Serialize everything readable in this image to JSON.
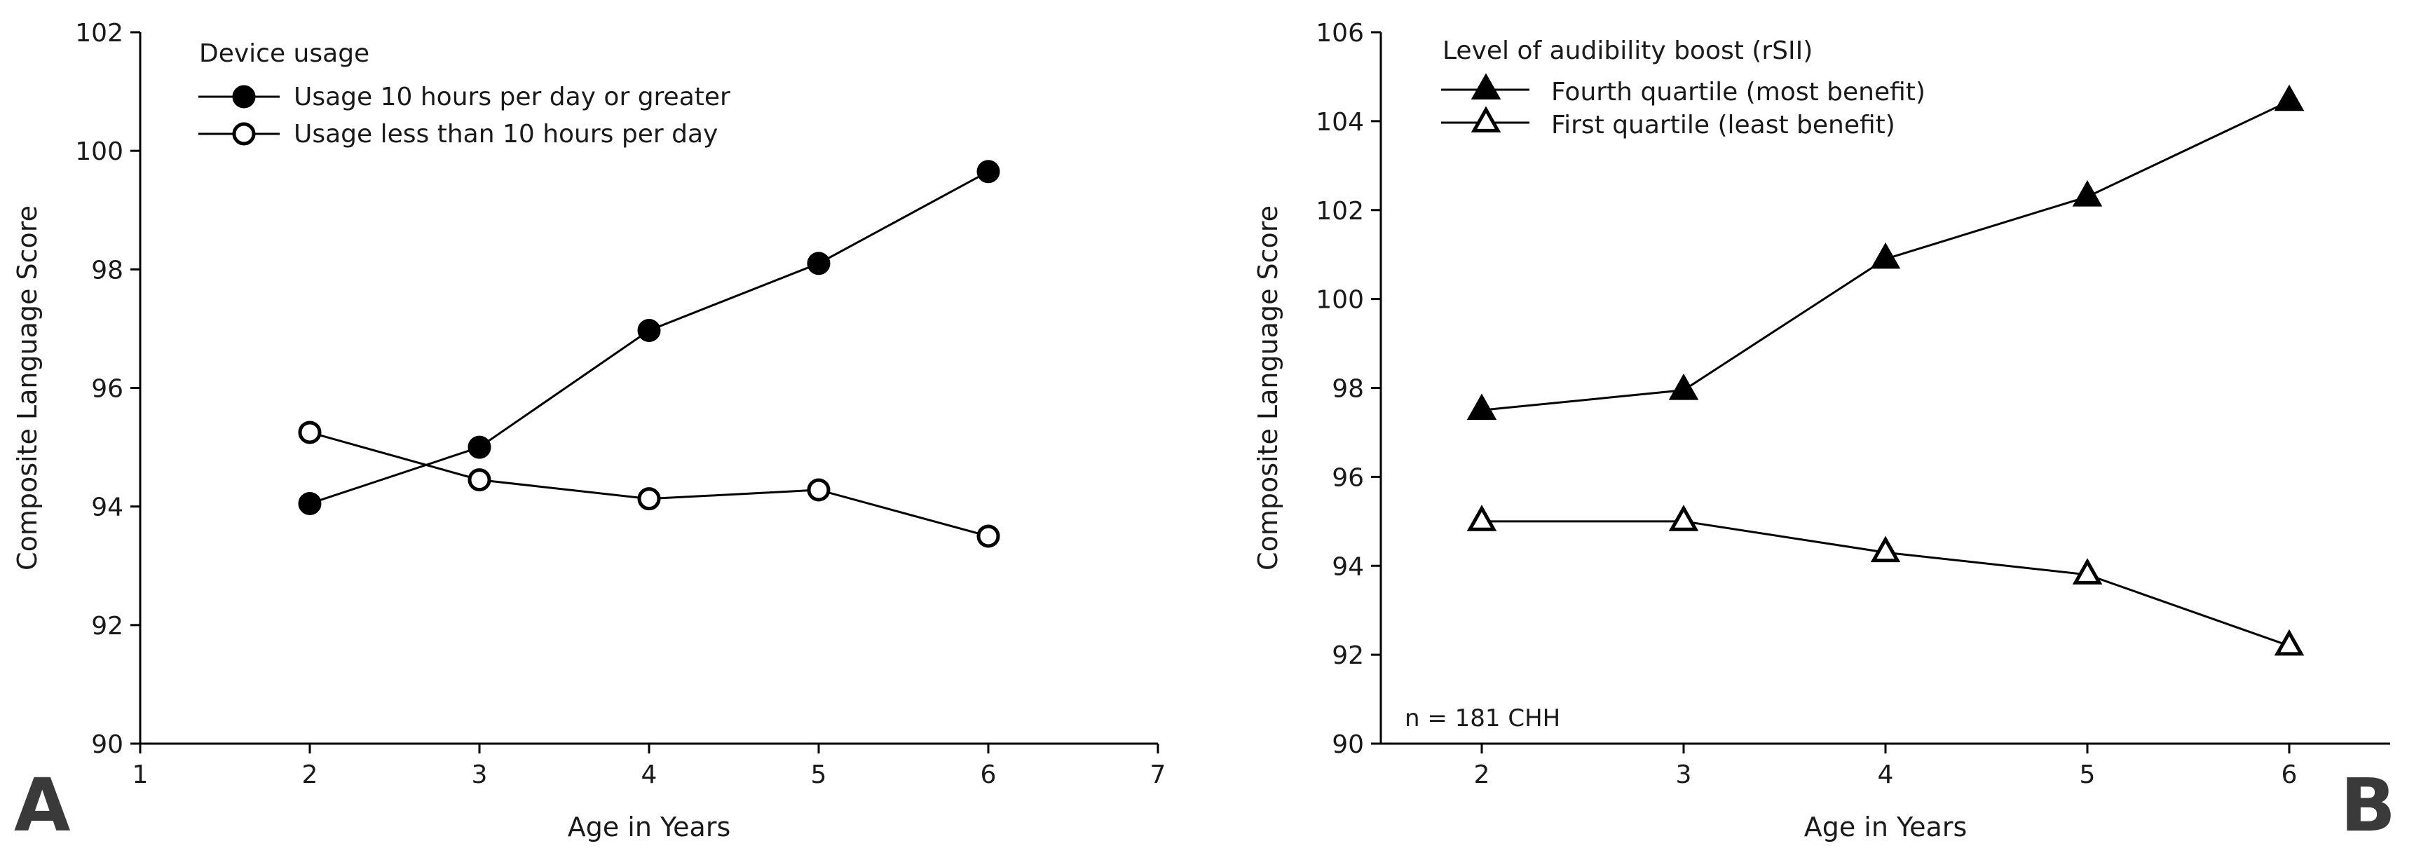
{
  "chart_data": [
    {
      "type": "line",
      "panel_label": "A",
      "xlabel": "Age in Years",
      "ylabel": "Composite Language Score",
      "xlim": [
        1,
        7
      ],
      "ylim": [
        90,
        102
      ],
      "xticks": [
        "1",
        "2",
        "3",
        "4",
        "5",
        "6",
        "7"
      ],
      "yticks": [
        "90",
        "92",
        "94",
        "96",
        "98",
        "100",
        "102"
      ],
      "grid": false,
      "legend": {
        "title": "Device usage",
        "placement": "top-left"
      },
      "series": [
        {
          "name": "Usage 10 hours per day or greater",
          "marker": "filled-circle",
          "x": [
            2,
            3,
            4,
            5,
            6
          ],
          "y": [
            94.05,
            95.0,
            96.97,
            98.1,
            99.65
          ]
        },
        {
          "name": "Usage less than 10 hours per day",
          "marker": "open-circle",
          "x": [
            2,
            3,
            4,
            5,
            6
          ],
          "y": [
            95.25,
            94.45,
            94.13,
            94.28,
            93.5
          ]
        }
      ],
      "annotation": ""
    },
    {
      "type": "line",
      "panel_label": "B",
      "xlabel": "Age in Years",
      "ylabel": "Composite Language Score",
      "xlim": [
        1.5,
        6.5
      ],
      "ylim": [
        90,
        106
      ],
      "xticks": [
        "2",
        "3",
        "4",
        "5",
        "6"
      ],
      "yticks": [
        "90",
        "92",
        "94",
        "96",
        "98",
        "100",
        "102",
        "104",
        "106"
      ],
      "grid": false,
      "legend": {
        "title": "Level of audibility boost (rSII)",
        "placement": "top-left"
      },
      "series": [
        {
          "name": "Fourth quartile (most benefit)",
          "marker": "filled-triangle",
          "x": [
            2,
            3,
            4,
            5,
            6
          ],
          "y": [
            97.5,
            97.95,
            100.9,
            102.3,
            104.45
          ]
        },
        {
          "name": "First quartile (least benefit)",
          "marker": "open-triangle",
          "x": [
            2,
            3,
            4,
            5,
            6
          ],
          "y": [
            95.0,
            95.0,
            94.3,
            93.8,
            92.2
          ]
        }
      ],
      "annotation": "n = 181 CHH"
    }
  ]
}
